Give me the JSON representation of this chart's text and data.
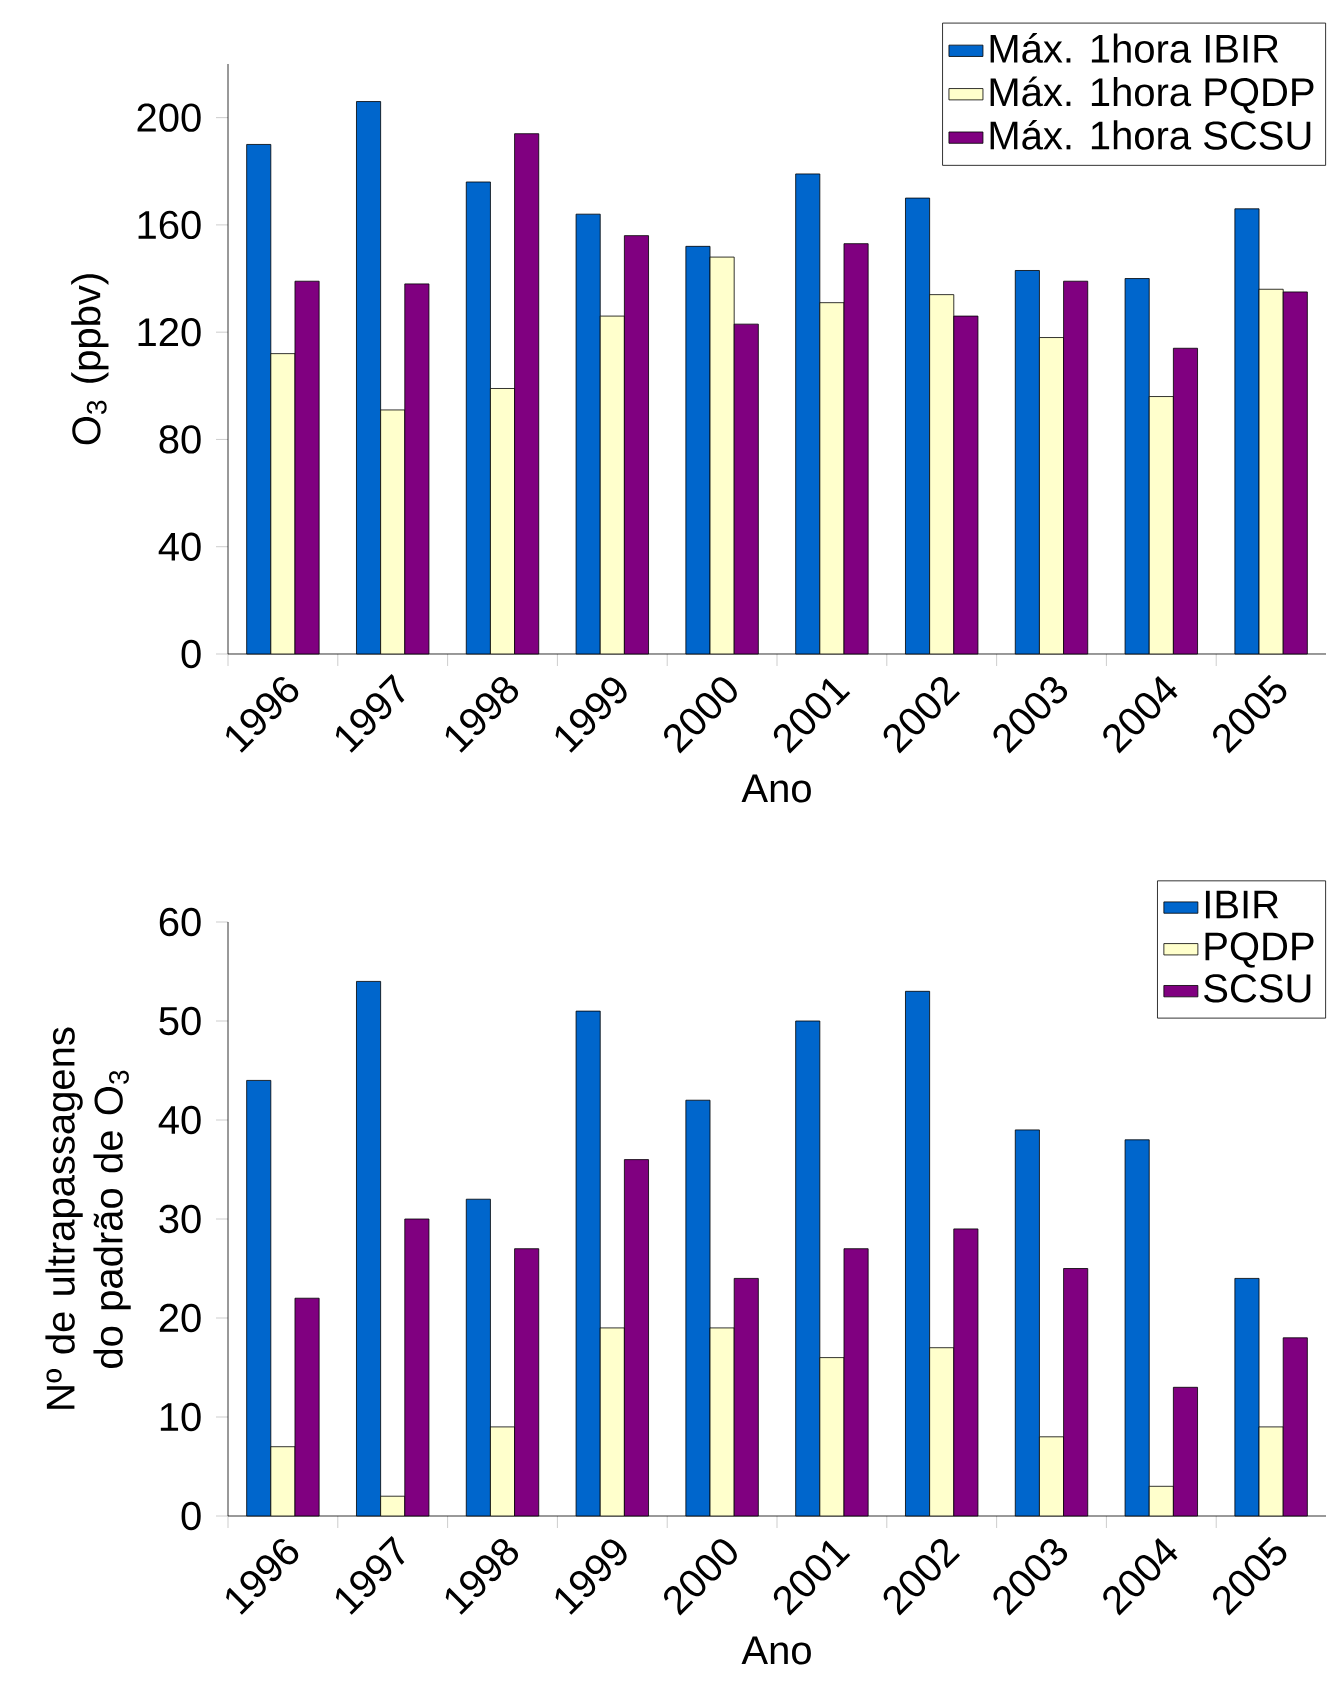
{
  "chart_data": [
    {
      "type": "bar",
      "xlabel": "Ano",
      "ylabel": "O$_{3}$ (ppbv)",
      "categories": [
        "1996",
        "1997",
        "1998",
        "1999",
        "2000",
        "2001",
        "2002",
        "2003",
        "2004",
        "2005"
      ],
      "series": [
        {
          "name": "Máx. 1hora IBIR",
          "color": "#0066cc",
          "values": [
            190,
            206,
            176,
            164,
            152,
            179,
            170,
            143,
            140,
            166
          ]
        },
        {
          "name": "Máx. 1hora PQDP",
          "color": "#ffffcc",
          "values": [
            112,
            91,
            99,
            126,
            148,
            131,
            134,
            118,
            96,
            136
          ]
        },
        {
          "name": "Máx. 1hora SCSU",
          "color": "#800080",
          "values": [
            139,
            138,
            194,
            156,
            123,
            153,
            126,
            139,
            114,
            135
          ]
        }
      ],
      "ylim": [
        0,
        220
      ],
      "yticks": [
        0,
        40,
        80,
        120,
        160,
        200
      ],
      "grid": false,
      "legend": "top right"
    },
    {
      "type": "bar",
      "xlabel": "Ano",
      "ylabel": "Nº de ultrapassagens do padrão de O$_{3}$",
      "categories": [
        "1996",
        "1997",
        "1998",
        "1999",
        "2000",
        "2001",
        "2002",
        "2003",
        "2004",
        "2005"
      ],
      "series": [
        {
          "name": "IBIR",
          "color": "#0066cc",
          "values": [
            44,
            54,
            32,
            51,
            42,
            50,
            53,
            39,
            38,
            24
          ]
        },
        {
          "name": "PQDP",
          "color": "#ffffcc",
          "values": [
            7,
            2,
            9,
            19,
            19,
            16,
            17,
            8,
            3,
            9
          ]
        },
        {
          "name": "SCSU",
          "color": "#800080",
          "values": [
            22,
            30,
            27,
            36,
            24,
            27,
            29,
            25,
            13,
            18
          ]
        }
      ],
      "ylim": [
        0,
        60
      ],
      "yticks": [
        0,
        10,
        20,
        30,
        40,
        50,
        60
      ],
      "grid": false,
      "legend": "top right"
    }
  ]
}
